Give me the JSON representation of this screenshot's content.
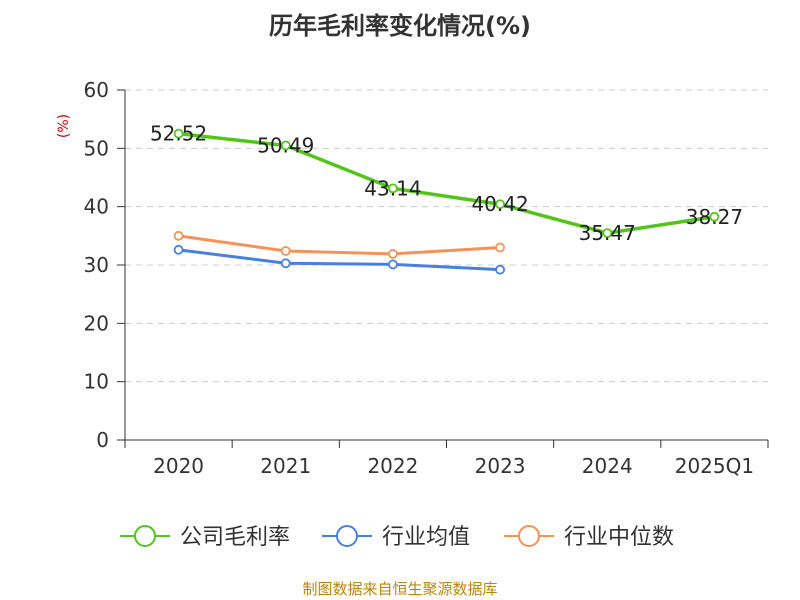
{
  "chart_data": {
    "type": "line",
    "title": "历年毛利率变化情况(%)",
    "ylabel": "(%)",
    "categories": [
      "2020",
      "2021",
      "2022",
      "2023",
      "2024",
      "2025Q1"
    ],
    "ylim": [
      0,
      60
    ],
    "yticks": [
      "0",
      "10",
      "20",
      "30",
      "40",
      "50",
      "60"
    ],
    "grid": true,
    "legend_position": "bottom",
    "series": [
      {
        "name": "公司毛利率",
        "color": "#52c41a",
        "values": [
          52.52,
          50.49,
          43.14,
          40.42,
          35.47,
          38.27
        ],
        "labels": [
          "52.52",
          "50.49",
          "43.14",
          "40.42",
          "35.47",
          "38.27"
        ]
      },
      {
        "name": "行业均值",
        "color": "#4a7fe0",
        "values": [
          32.6,
          30.3,
          30.1,
          29.2,
          null,
          null
        ]
      },
      {
        "name": "行业中位数",
        "color": "#f5925a",
        "values": [
          35.0,
          32.4,
          31.9,
          33.0,
          null,
          null
        ]
      }
    ]
  },
  "source": "制图数据来自恒生聚源数据库"
}
